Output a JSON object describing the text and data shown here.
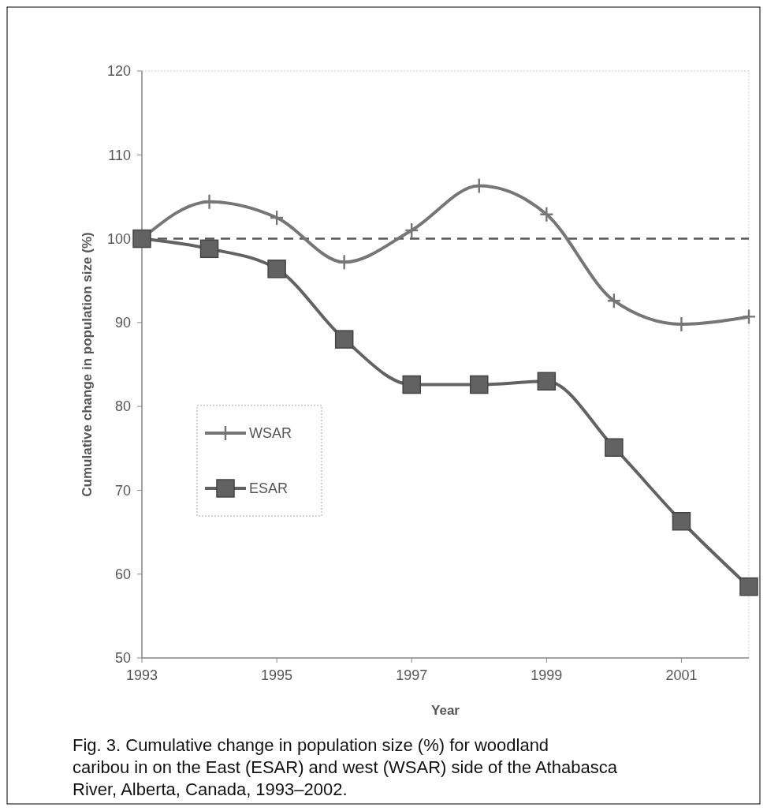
{
  "chart_data": {
    "type": "line",
    "xlabel": "Year",
    "ylabel": "Cumulative change in population size (%)",
    "x": [
      1993,
      1994,
      1995,
      1996,
      1997,
      1998,
      1999,
      2000,
      2001,
      2002
    ],
    "series": [
      {
        "name": "WSAR",
        "color": "#767676",
        "marker": "cross",
        "values": [
          100,
          104.4,
          102.5,
          97.2,
          101.0,
          106.3,
          102.9,
          92.6,
          89.8,
          90.7
        ]
      },
      {
        "name": "ESAR",
        "color": "#626262",
        "marker": "square",
        "values": [
          100,
          98.8,
          96.4,
          88.0,
          82.6,
          82.6,
          83.0,
          75.1,
          66.3,
          58.5
        ]
      }
    ],
    "xlim": [
      1993,
      2002
    ],
    "xticks": [
      1993,
      1995,
      1997,
      1999,
      2001
    ],
    "ylim": [
      50,
      120
    ],
    "yticks": [
      50,
      60,
      70,
      80,
      90,
      100,
      110,
      120
    ],
    "ref_lines": [
      {
        "axis": "y",
        "value": 100,
        "color": "#555555",
        "line_style": "dashed"
      }
    ],
    "legend": "bottom left",
    "grid": false,
    "line_style": "solid",
    "annotations": [
      "Fig. 3. Cumulative change in population size (%) for woodland caribou in on the East (ESAR) and west (WSAR) side of the Athabasca River, Alberta, Canada, 1993–2002."
    ]
  }
}
